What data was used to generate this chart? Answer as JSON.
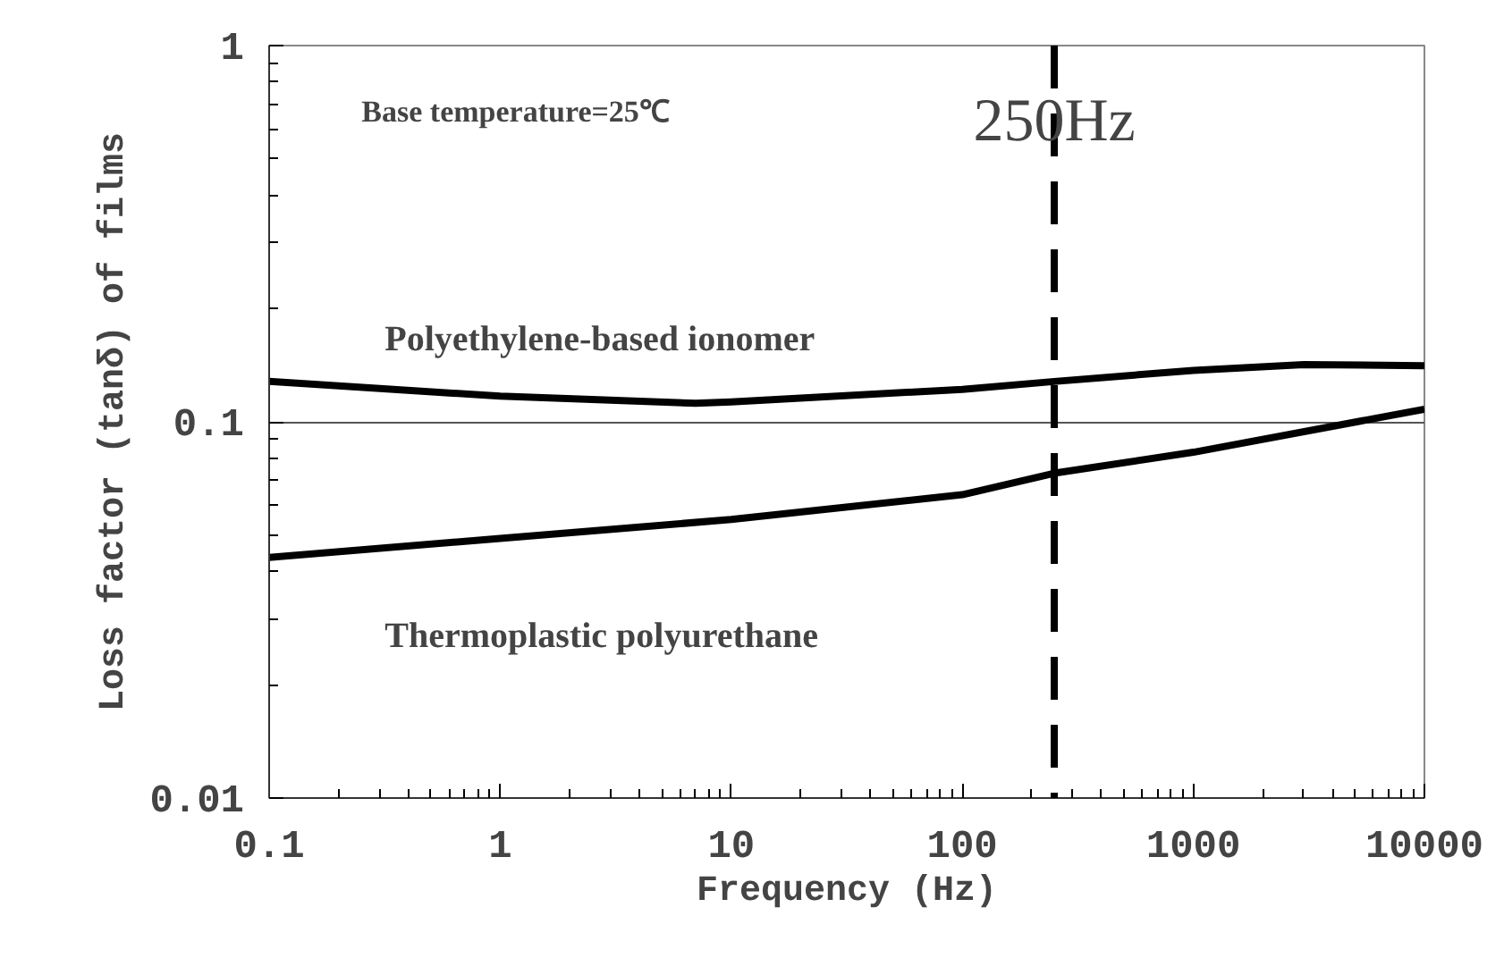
{
  "chart_data": {
    "type": "line",
    "xlabel": "Frequency (Hz)",
    "ylabel": "Loss factor (tanδ) of films",
    "log": "xy",
    "xlim": [
      0.1,
      10000
    ],
    "xticks": [
      {
        "value": 0.1,
        "label": "0.1"
      },
      1,
      10,
      100,
      1000,
      10000
    ],
    "ylim": [
      0.01,
      1
    ],
    "yticks": [
      {
        "value": 0.01,
        "label": "0.01"
      },
      {
        "value": 0.1,
        "label": "0.1"
      },
      1
    ],
    "grid": "y",
    "line_style": "solid",
    "series": [
      {
        "name": "Polyethylene-based ionomer",
        "color": "#000000",
        "x": [
          0.1,
          1,
          7,
          10,
          100,
          250,
          1000,
          3000,
          10000
        ],
        "values": [
          0.128,
          0.117,
          0.112,
          0.113,
          0.122,
          0.128,
          0.137,
          0.142,
          0.141
        ]
      },
      {
        "name": "Thermoplastic polyurethane",
        "color": "#000000",
        "x": [
          0.1,
          1,
          10,
          100,
          250,
          1000,
          10000
        ],
        "values": [
          0.0436,
          0.049,
          0.055,
          0.064,
          0.073,
          0.083,
          0.108
        ]
      }
    ],
    "ref_lines": [
      {
        "axis": "x",
        "value": 250,
        "label": "250Hz",
        "color": "#000000",
        "line_style": "dashed"
      }
    ],
    "annotations": [
      "Base temperature=25℃"
    ]
  }
}
